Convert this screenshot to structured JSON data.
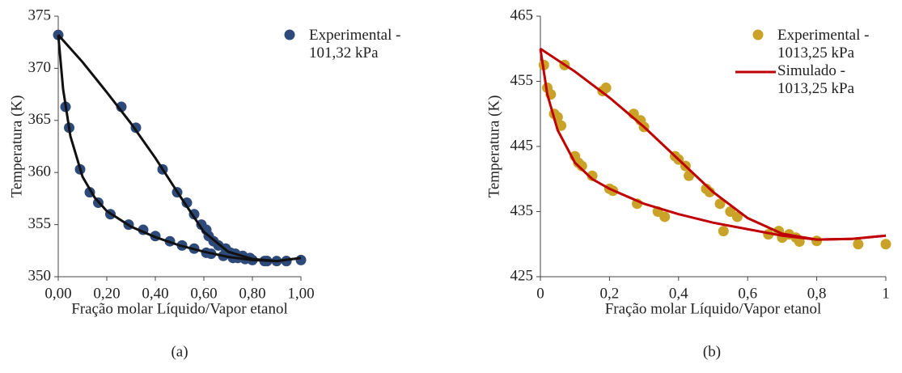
{
  "chart_data": [
    {
      "type": "scatter",
      "caption": "(a)",
      "x_label": "Fração molar Líquido/Vapor etanol",
      "y_label": "Temperatura (K)",
      "xlim": [
        0,
        1
      ],
      "ylim": [
        350,
        375
      ],
      "xticks": [
        {
          "value": 0,
          "label": "0,00"
        },
        {
          "value": 0.2,
          "label": "0,20"
        },
        {
          "value": 0.4,
          "label": "0,40"
        },
        {
          "value": 0.6,
          "label": "0,60"
        },
        {
          "value": 0.8,
          "label": "0,80"
        },
        {
          "value": 1,
          "label": "1,00"
        }
      ],
      "yticks": [
        350,
        355,
        360,
        365,
        370,
        375
      ],
      "legend": "upper right",
      "series": [
        {
          "name": "Experimental - 101,32 kPa",
          "type": "scatter",
          "color": "#2e4a7a",
          "x": [
            0,
            0.03,
            0.045,
            0.09,
            0.13,
            0.165,
            0.215,
            0.29,
            0.35,
            0.4,
            0.46,
            0.51,
            0.56,
            0.61,
            0.63,
            0.68,
            0.72,
            0.74,
            0.77,
            0.8,
            0.85,
            0.86,
            0.9,
            0.94,
            1.0,
            0.26,
            0.32,
            0.43,
            0.49,
            0.53,
            0.56,
            0.59,
            0.61,
            0.62,
            0.64,
            0.66,
            0.69,
            0.71,
            0.73,
            0.76,
            0.79,
            0.86,
            0.94
          ],
          "values": [
            373.2,
            366.3,
            364.3,
            360.3,
            358.1,
            357.1,
            356.0,
            355.0,
            354.5,
            353.9,
            353.4,
            353.0,
            352.7,
            352.3,
            352.2,
            352.0,
            351.8,
            351.8,
            351.7,
            351.6,
            351.5,
            351.5,
            351.5,
            351.5,
            351.6,
            366.3,
            364.3,
            360.3,
            358.1,
            357.1,
            356.0,
            355.0,
            354.5,
            353.9,
            353.4,
            353.0,
            352.7,
            352.3,
            352.2,
            352.0,
            351.8,
            351.5,
            351.5
          ]
        },
        {
          "type": "line",
          "color": "#111111",
          "x": [
            0,
            0.02,
            0.05,
            0.1,
            0.15,
            0.2,
            0.3,
            0.4,
            0.5,
            0.6,
            0.7,
            0.8,
            0.9,
            1.0
          ],
          "values": [
            373.2,
            368,
            363.5,
            359.6,
            357.6,
            356.3,
            354.8,
            353.8,
            353.0,
            352.4,
            351.9,
            351.6,
            351.5,
            351.8
          ]
        },
        {
          "type": "line",
          "color": "#111111",
          "x": [
            0,
            0.1,
            0.2,
            0.3,
            0.4,
            0.5,
            0.6,
            0.7,
            0.8,
            0.9,
            1.0
          ],
          "values": [
            373.2,
            370.6,
            367.7,
            364.7,
            361.4,
            357.8,
            354.3,
            352.4,
            351.7,
            351.5,
            351.8
          ]
        }
      ]
    },
    {
      "type": "scatter",
      "caption": "(b)",
      "x_label": "Fração molar Líquido/Vapor etanol",
      "y_label": "Temperatura (K)",
      "xlim": [
        0,
        1
      ],
      "ylim": [
        425,
        465
      ],
      "xticks": [
        0,
        {
          "value": 0.2,
          "label": "0,2"
        },
        {
          "value": 0.4,
          "label": "0,4"
        },
        {
          "value": 0.6,
          "label": "0,6"
        },
        {
          "value": 0.8,
          "label": "0,8"
        },
        1
      ],
      "yticks": [
        425,
        435,
        445,
        455,
        465
      ],
      "legend": "upper right",
      "series": [
        {
          "name": "Experimental - 1013,25 kPa",
          "type": "scatter",
          "color": "#c9a227",
          "x": [
            0.01,
            0.02,
            0.03,
            0.04,
            0.05,
            0.06,
            0.07,
            0.1,
            0.11,
            0.12,
            0.15,
            0.18,
            0.19,
            0.2,
            0.21,
            0.27,
            0.28,
            0.29,
            0.3,
            0.34,
            0.36,
            0.39,
            0.4,
            0.42,
            0.43,
            0.48,
            0.49,
            0.52,
            0.53,
            0.55,
            0.57,
            0.66,
            0.69,
            0.7,
            0.72,
            0.74,
            0.75,
            0.8,
            0.92,
            1.0
          ],
          "values": [
            457.5,
            454,
            453,
            450,
            449.5,
            448.2,
            457.5,
            443.5,
            442.5,
            442,
            440.5,
            453.5,
            454,
            438.5,
            438.2,
            450,
            436.2,
            449,
            448,
            435,
            434.2,
            443.5,
            443,
            442,
            440.5,
            438.5,
            438,
            436.2,
            432,
            435,
            434.2,
            431.5,
            432,
            431,
            431.5,
            431,
            430.4,
            430.5,
            430,
            430
          ]
        },
        {
          "name": "Simulado - 1013,25 kPa",
          "type": "line",
          "color": "#c00000",
          "x": [
            0,
            0.02,
            0.05,
            0.1,
            0.15,
            0.2,
            0.3,
            0.4,
            0.5,
            0.6,
            0.7,
            0.8,
            0.9,
            1.0
          ],
          "values": [
            460,
            453,
            447.5,
            442.5,
            440,
            438.5,
            436.2,
            434.6,
            433.3,
            432.3,
            431.3,
            430.7,
            430.8,
            431.3
          ]
        },
        {
          "type": "line",
          "color": "#c00000",
          "x": [
            0,
            0.1,
            0.2,
            0.3,
            0.4,
            0.5,
            0.6,
            0.7,
            0.8,
            0.9,
            1.0
          ],
          "values": [
            460,
            456.5,
            452.5,
            448,
            443,
            438,
            434,
            431.6,
            430.7,
            430.8,
            431.3
          ]
        }
      ]
    }
  ]
}
